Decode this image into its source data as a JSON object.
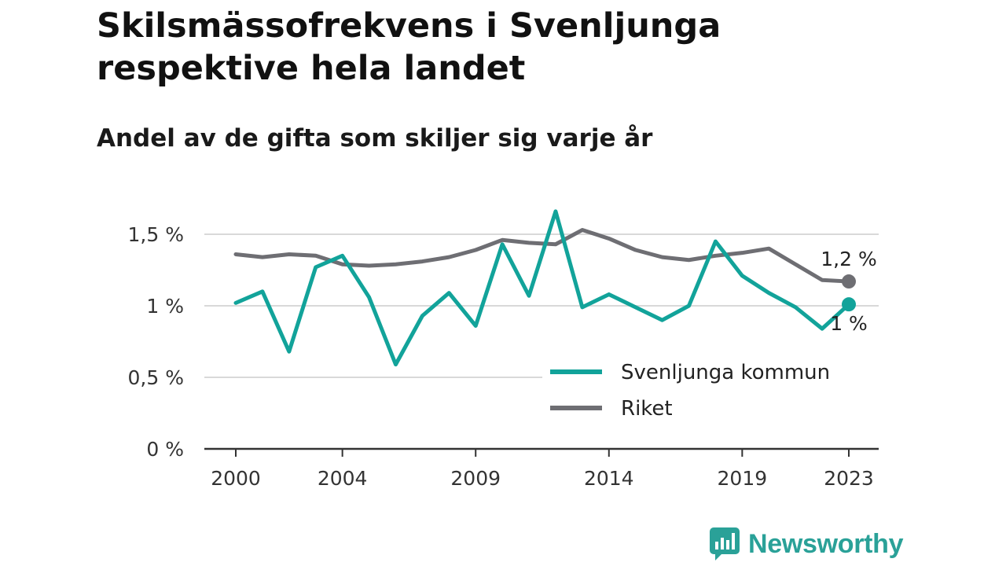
{
  "header": {
    "title": "Skilsmässofrekvens i Svenljunga respektive hela landet",
    "subtitle": "Andel av de gifta som skiljer sig varje år"
  },
  "logo": {
    "text": "Newsworthy",
    "icon": "newsworthy-chart-bubble-icon"
  },
  "colors": {
    "svenljunga": "#12a39a",
    "riket": "#6e6e73",
    "grid": "#d9d9d9",
    "axis": "#333333"
  },
  "chart_data": {
    "type": "line",
    "title": "Skilsmässofrekvens i Svenljunga respektive hela landet",
    "subtitle": "Andel av de gifta som skiljer sig varje år",
    "x": [
      2000,
      2001,
      2002,
      2003,
      2004,
      2005,
      2006,
      2007,
      2008,
      2009,
      2010,
      2011,
      2012,
      2013,
      2014,
      2015,
      2016,
      2017,
      2018,
      2019,
      2020,
      2021,
      2022,
      2023
    ],
    "x_ticks": [
      {
        "value": 2000,
        "label": "2000"
      },
      {
        "value": 2004,
        "label": "2004"
      },
      {
        "value": 2009,
        "label": "2009"
      },
      {
        "value": 2014,
        "label": "2014"
      },
      {
        "value": 2019,
        "label": "2019"
      },
      {
        "value": 2023,
        "label": "2023"
      }
    ],
    "y_ticks": [
      {
        "value": 0,
        "label": "0 %"
      },
      {
        "value": 0.5,
        "label": "0,5 %"
      },
      {
        "value": 1.0,
        "label": "1 %"
      },
      {
        "value": 1.5,
        "label": "1,5 %"
      }
    ],
    "xlim": [
      2000,
      2023
    ],
    "ylim": [
      0,
      1.7
    ],
    "grid": true,
    "legend_position": "bottom-right",
    "series": [
      {
        "name": "Svenljunga kommun",
        "color": "#12a39a",
        "values": [
          1.02,
          1.1,
          0.68,
          1.27,
          1.35,
          1.06,
          0.59,
          0.93,
          1.09,
          0.86,
          1.43,
          1.07,
          1.66,
          0.99,
          1.08,
          0.99,
          0.9,
          1.0,
          1.45,
          1.21,
          1.09,
          0.99,
          0.84,
          1.01
        ],
        "end_label": "1 %"
      },
      {
        "name": "Riket",
        "color": "#6e6e73",
        "values": [
          1.36,
          1.34,
          1.36,
          1.35,
          1.29,
          1.28,
          1.29,
          1.31,
          1.34,
          1.39,
          1.46,
          1.44,
          1.43,
          1.53,
          1.47,
          1.39,
          1.34,
          1.32,
          1.35,
          1.37,
          1.4,
          1.29,
          1.18,
          1.17
        ],
        "end_label": "1,2 %"
      }
    ]
  }
}
